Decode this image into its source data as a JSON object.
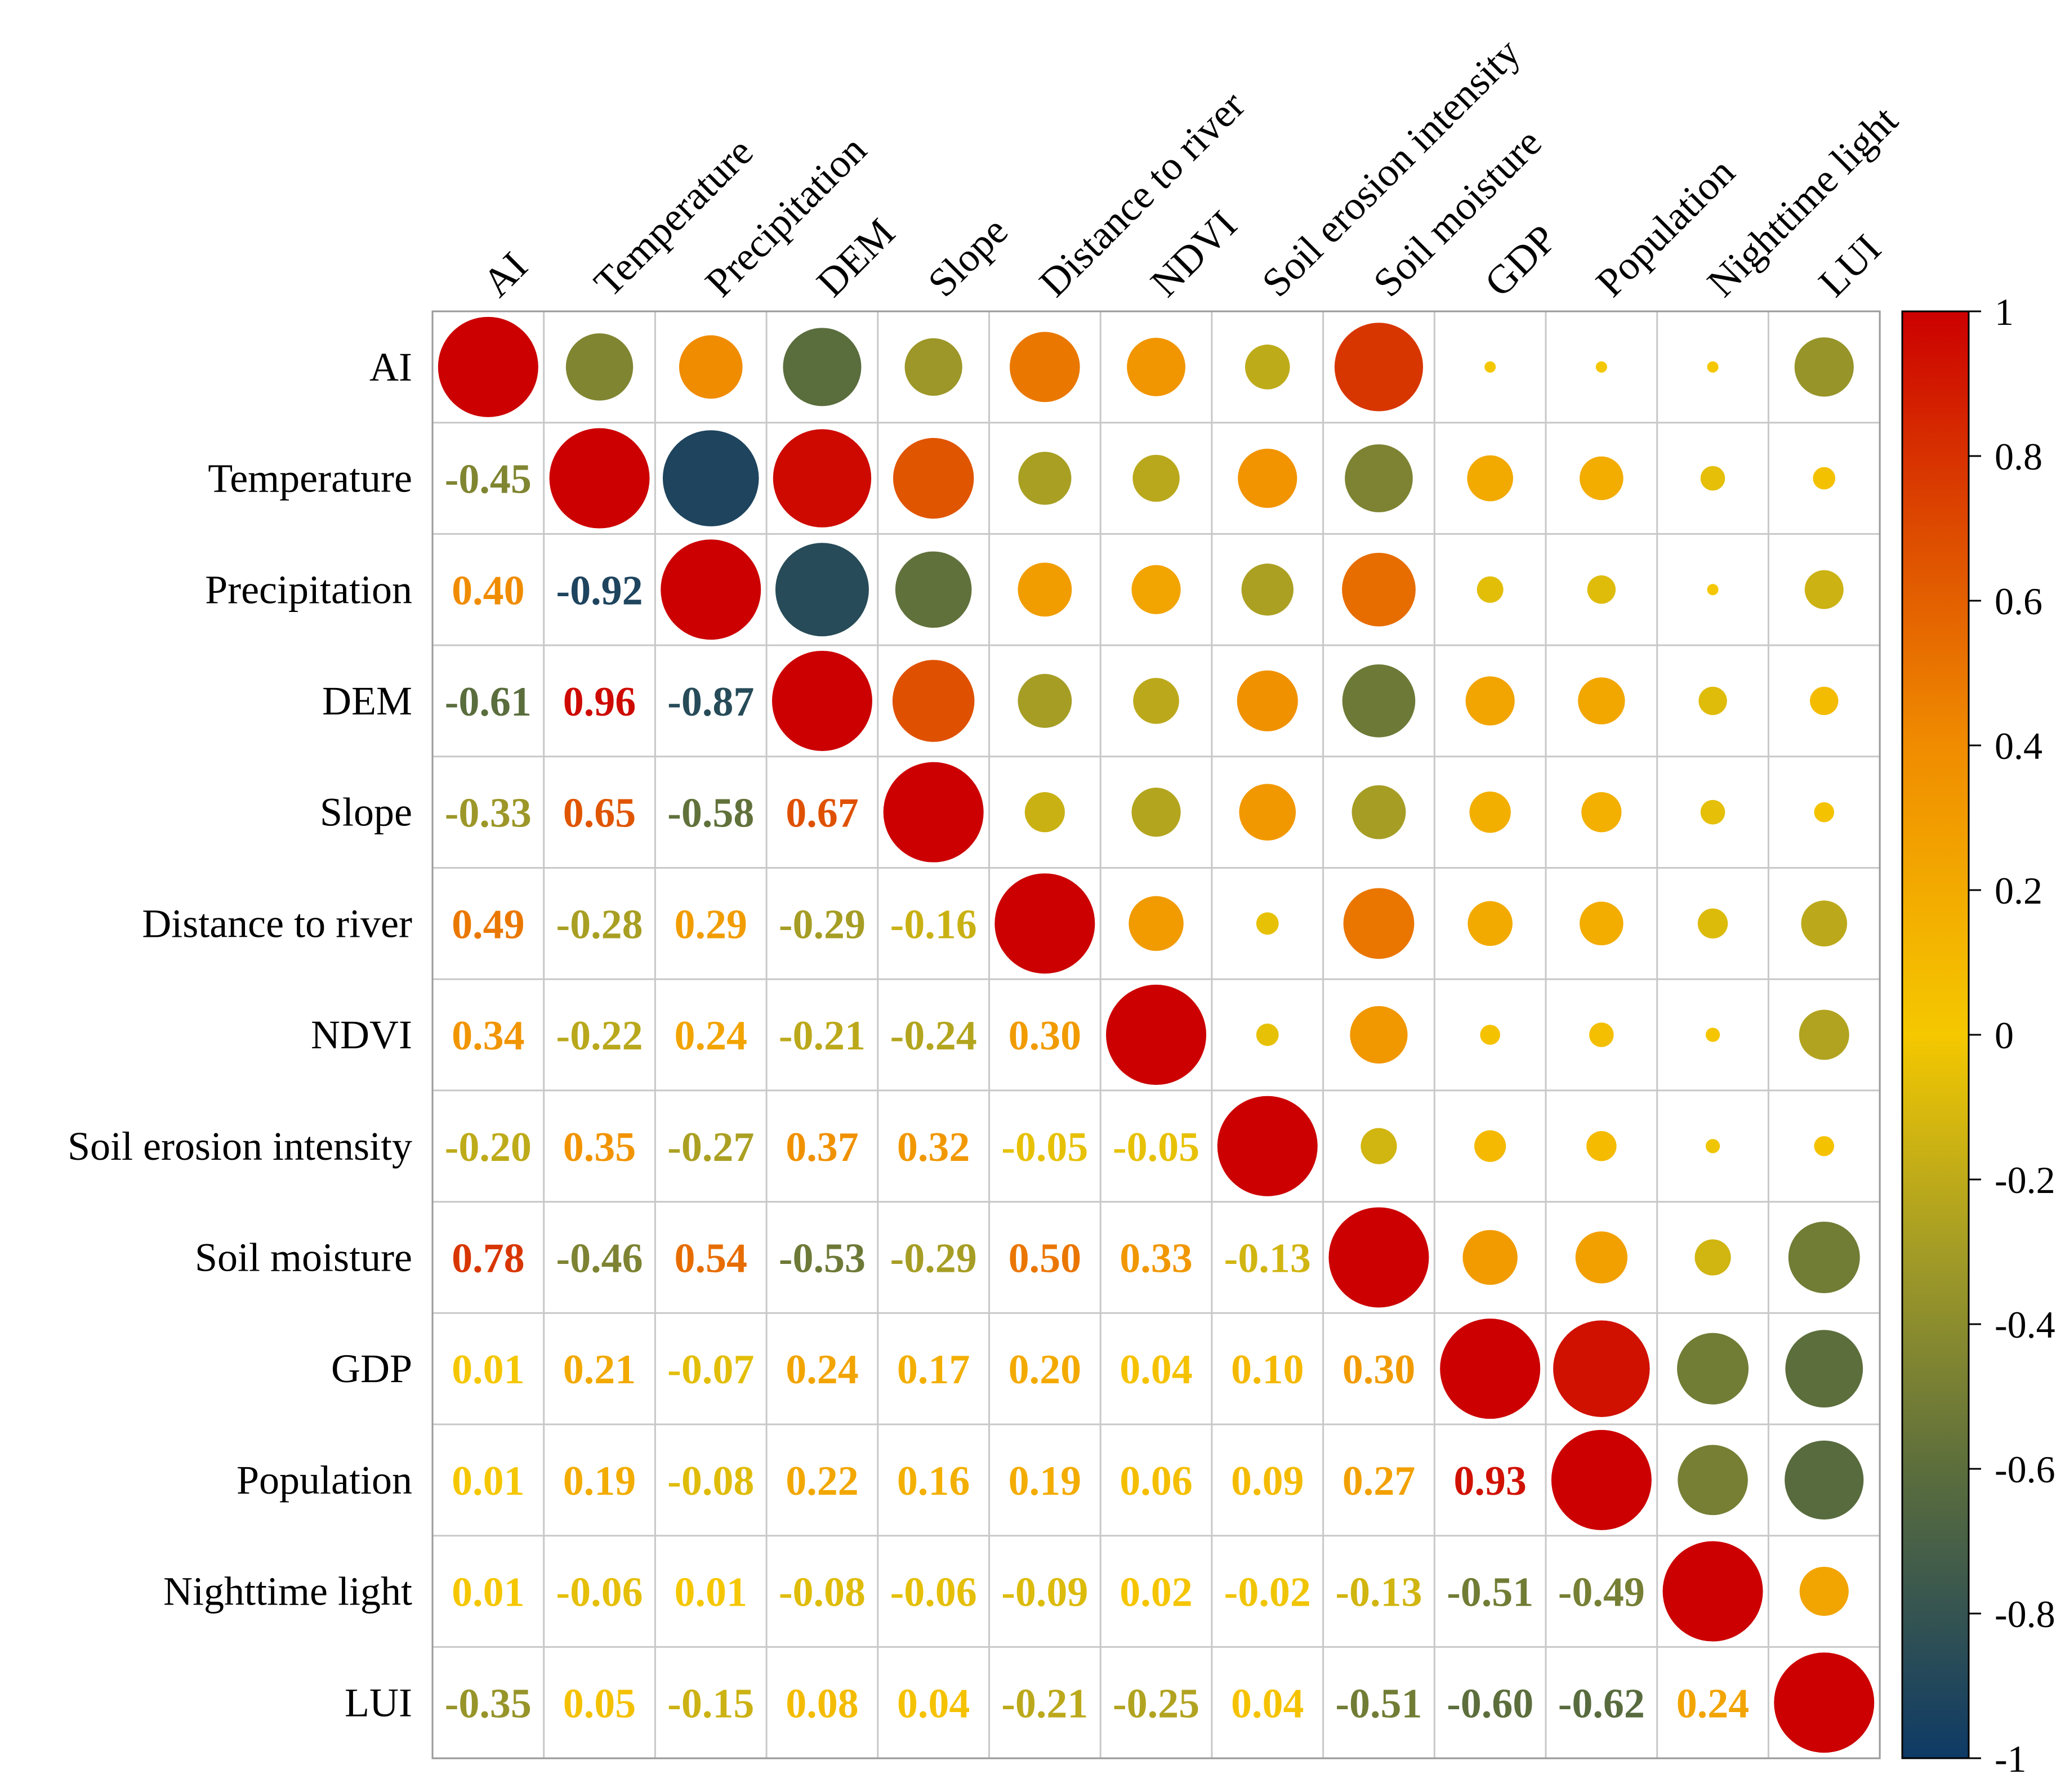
{
  "chart_data": {
    "type": "heatmap",
    "subtype": "correlation-matrix (circles upper, numbers lower)",
    "variables": [
      "AI",
      "Temperature",
      "Precipitation",
      "DEM",
      "Slope",
      "Distance to river",
      "NDVI",
      "Soil erosion intensity",
      "Soil moisture",
      "GDP",
      "Population",
      "Nighttime light",
      "LUI"
    ],
    "matrix": [
      [
        1,
        -0.45,
        0.4,
        -0.61,
        -0.33,
        0.49,
        0.34,
        -0.2,
        0.78,
        0.01,
        0.01,
        0.01,
        -0.35
      ],
      [
        -0.45,
        1,
        -0.92,
        0.96,
        0.65,
        -0.28,
        -0.22,
        0.35,
        -0.46,
        0.21,
        0.19,
        -0.06,
        0.05
      ],
      [
        0.4,
        -0.92,
        1,
        -0.87,
        -0.58,
        0.29,
        0.24,
        -0.27,
        0.54,
        -0.07,
        -0.08,
        0.01,
        -0.15
      ],
      [
        -0.61,
        0.96,
        -0.87,
        1,
        0.67,
        -0.29,
        -0.21,
        0.37,
        -0.53,
        0.24,
        0.22,
        -0.08,
        0.08
      ],
      [
        -0.33,
        0.65,
        -0.58,
        0.67,
        1,
        -0.16,
        -0.24,
        0.32,
        -0.29,
        0.17,
        0.16,
        -0.06,
        0.04
      ],
      [
        0.49,
        -0.28,
        0.29,
        -0.29,
        -0.16,
        1,
        0.3,
        -0.05,
        0.5,
        0.2,
        0.19,
        -0.09,
        -0.21
      ],
      [
        0.34,
        -0.22,
        0.24,
        -0.21,
        -0.24,
        0.3,
        1,
        -0.05,
        0.33,
        0.04,
        0.06,
        0.02,
        -0.25
      ],
      [
        -0.2,
        0.35,
        -0.27,
        0.37,
        0.32,
        -0.05,
        -0.05,
        1,
        -0.13,
        0.1,
        0.09,
        -0.02,
        0.04
      ],
      [
        0.78,
        -0.46,
        0.54,
        -0.53,
        -0.29,
        0.5,
        0.33,
        -0.13,
        1,
        0.3,
        0.27,
        -0.13,
        -0.51
      ],
      [
        0.01,
        0.21,
        -0.07,
        0.24,
        0.17,
        0.2,
        0.04,
        0.1,
        0.3,
        1,
        0.93,
        -0.51,
        -0.6
      ],
      [
        0.01,
        0.19,
        -0.08,
        0.22,
        0.16,
        0.19,
        0.06,
        0.09,
        0.27,
        0.93,
        1,
        -0.49,
        -0.62
      ],
      [
        0.01,
        -0.06,
        0.01,
        -0.08,
        -0.06,
        -0.09,
        0.02,
        -0.02,
        -0.13,
        -0.51,
        -0.49,
        1,
        0.24
      ],
      [
        -0.35,
        0.05,
        -0.15,
        0.08,
        0.04,
        -0.21,
        -0.25,
        0.04,
        -0.51,
        -0.6,
        -0.62,
        0.24,
        1
      ]
    ],
    "colorbar": {
      "range": [
        -1,
        1
      ],
      "ticks": [
        "1",
        "0.8",
        "0.6",
        "0.4",
        "0.2",
        "0",
        "-0.2",
        "-0.4",
        "-0.6",
        "-0.8",
        "-1"
      ],
      "stops": [
        {
          "v": -1.0,
          "color": "#0e3a66"
        },
        {
          "v": -0.6,
          "color": "#5c6e3c"
        },
        {
          "v": -0.3,
          "color": "#a39c26"
        },
        {
          "v": 0.0,
          "color": "#f5c800"
        },
        {
          "v": 0.4,
          "color": "#f08c00"
        },
        {
          "v": 0.7,
          "color": "#dd4a00"
        },
        {
          "v": 1.0,
          "color": "#cc0000"
        }
      ]
    }
  }
}
